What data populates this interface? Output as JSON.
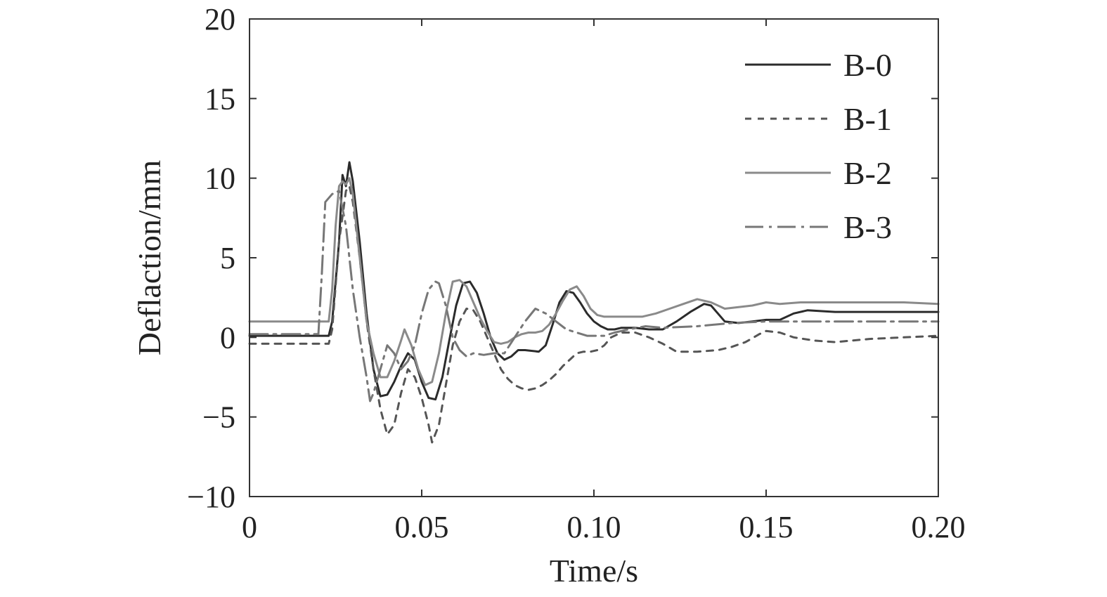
{
  "chart_data": {
    "type": "line",
    "title": "",
    "xlabel": "Time/s",
    "ylabel": "Deflaction/mm",
    "xlim": [
      0,
      0.2
    ],
    "ylim": [
      -10,
      20
    ],
    "xticks": [
      0,
      0.05,
      0.1,
      0.15,
      0.2
    ],
    "xtick_labels": [
      "0",
      "0.05",
      "0.10",
      "0.15",
      "0.20"
    ],
    "yticks": [
      -10,
      -5,
      0,
      5,
      10,
      15,
      20
    ],
    "ytick_labels": [
      "−10",
      "−5",
      "0",
      "5",
      "10",
      "15",
      "20"
    ],
    "grid": false,
    "legend_position": "top-right",
    "series": [
      {
        "name": "B-0",
        "color": "#2b2b2b",
        "dash": "",
        "x": [
          0,
          0.023,
          0.024,
          0.026,
          0.027,
          0.028,
          0.029,
          0.03,
          0.032,
          0.034,
          0.036,
          0.038,
          0.04,
          0.042,
          0.044,
          0.046,
          0.048,
          0.05,
          0.052,
          0.054,
          0.056,
          0.058,
          0.06,
          0.062,
          0.064,
          0.066,
          0.068,
          0.07,
          0.072,
          0.074,
          0.076,
          0.078,
          0.08,
          0.084,
          0.086,
          0.088,
          0.09,
          0.092,
          0.094,
          0.096,
          0.098,
          0.1,
          0.102,
          0.104,
          0.106,
          0.108,
          0.112,
          0.116,
          0.12,
          0.124,
          0.128,
          0.132,
          0.134,
          0.136,
          0.138,
          0.142,
          0.146,
          0.15,
          0.154,
          0.158,
          0.162,
          0.17,
          0.18,
          0.19,
          0.2
        ],
        "y": [
          0.1,
          0.1,
          1.0,
          6.0,
          10.2,
          9.5,
          11.0,
          9.8,
          6.0,
          1.5,
          -2.0,
          -3.7,
          -3.6,
          -2.8,
          -1.8,
          -1.0,
          -1.4,
          -2.8,
          -3.8,
          -3.9,
          -2.5,
          -0.2,
          2.0,
          3.4,
          3.5,
          2.8,
          1.5,
          0.0,
          -1.0,
          -1.4,
          -1.2,
          -0.8,
          -0.8,
          -0.9,
          -0.5,
          0.8,
          2.2,
          2.9,
          2.8,
          2.2,
          1.5,
          1.0,
          0.7,
          0.5,
          0.5,
          0.6,
          0.6,
          0.5,
          0.5,
          1.0,
          1.6,
          2.1,
          2.0,
          1.5,
          1.0,
          0.9,
          1.0,
          1.1,
          1.1,
          1.5,
          1.7,
          1.6,
          1.6,
          1.6,
          1.6
        ]
      },
      {
        "name": "B-1",
        "color": "#555555",
        "dash": "9,9",
        "x": [
          0,
          0.023,
          0.024,
          0.026,
          0.028,
          0.029,
          0.03,
          0.032,
          0.034,
          0.036,
          0.038,
          0.04,
          0.042,
          0.044,
          0.046,
          0.048,
          0.05,
          0.052,
          0.053,
          0.055,
          0.057,
          0.059,
          0.061,
          0.063,
          0.065,
          0.067,
          0.069,
          0.071,
          0.073,
          0.075,
          0.077,
          0.079,
          0.081,
          0.083,
          0.085,
          0.087,
          0.089,
          0.091,
          0.093,
          0.095,
          0.097,
          0.099,
          0.101,
          0.103,
          0.105,
          0.108,
          0.112,
          0.116,
          0.12,
          0.124,
          0.13,
          0.136,
          0.14,
          0.144,
          0.148,
          0.15,
          0.154,
          0.158,
          0.164,
          0.17,
          0.18,
          0.19,
          0.2
        ],
        "y": [
          -0.4,
          -0.4,
          0.5,
          6.0,
          9.2,
          9.5,
          8.5,
          5.0,
          1.0,
          -2.0,
          -4.5,
          -6.1,
          -5.5,
          -3.5,
          -2.0,
          -2.5,
          -3.8,
          -5.5,
          -6.6,
          -5.5,
          -3.0,
          -0.5,
          1.0,
          1.8,
          1.7,
          1.0,
          0.0,
          -1.0,
          -2.0,
          -2.6,
          -3.0,
          -3.2,
          -3.3,
          -3.2,
          -3.0,
          -2.7,
          -2.3,
          -1.8,
          -1.4,
          -1.0,
          -0.9,
          -0.9,
          -0.8,
          -0.5,
          0.0,
          0.3,
          0.3,
          0.0,
          -0.4,
          -0.9,
          -0.9,
          -0.8,
          -0.6,
          -0.3,
          0.2,
          0.4,
          0.3,
          0.0,
          -0.2,
          -0.3,
          -0.1,
          0.0,
          0.1
        ]
      },
      {
        "name": "B-2",
        "color": "#8a8a8a",
        "dash": "",
        "x": [
          0,
          0.023,
          0.024,
          0.025,
          0.026,
          0.027,
          0.028,
          0.029,
          0.03,
          0.032,
          0.034,
          0.036,
          0.038,
          0.04,
          0.042,
          0.044,
          0.045,
          0.047,
          0.049,
          0.051,
          0.053,
          0.055,
          0.057,
          0.059,
          0.061,
          0.063,
          0.065,
          0.067,
          0.069,
          0.071,
          0.073,
          0.075,
          0.077,
          0.079,
          0.081,
          0.083,
          0.085,
          0.087,
          0.089,
          0.091,
          0.093,
          0.095,
          0.097,
          0.099,
          0.101,
          0.103,
          0.106,
          0.11,
          0.114,
          0.118,
          0.122,
          0.126,
          0.13,
          0.134,
          0.138,
          0.142,
          0.146,
          0.15,
          0.154,
          0.16,
          0.17,
          0.18,
          0.19,
          0.2
        ],
        "y": [
          1.0,
          1.0,
          3.0,
          7.0,
          9.5,
          9.8,
          9.6,
          10.0,
          9.0,
          5.0,
          1.0,
          -1.0,
          -2.5,
          -2.5,
          -1.5,
          -0.2,
          0.5,
          -0.5,
          -2.0,
          -3.0,
          -2.8,
          -1.0,
          1.5,
          3.5,
          3.6,
          3.2,
          2.2,
          1.2,
          0.4,
          -0.3,
          -0.4,
          -0.3,
          0.0,
          0.2,
          0.3,
          0.3,
          0.4,
          0.8,
          1.5,
          2.3,
          3.0,
          3.2,
          2.6,
          1.8,
          1.4,
          1.3,
          1.3,
          1.3,
          1.3,
          1.5,
          1.8,
          2.1,
          2.4,
          2.2,
          1.8,
          1.9,
          2.0,
          2.2,
          2.1,
          2.2,
          2.2,
          2.2,
          2.2,
          2.1
        ]
      },
      {
        "name": "B-3",
        "color": "#777777",
        "dash": "26,8,4,8",
        "x": [
          0,
          0.02,
          0.021,
          0.022,
          0.024,
          0.026,
          0.028,
          0.03,
          0.032,
          0.034,
          0.035,
          0.036,
          0.038,
          0.04,
          0.042,
          0.044,
          0.046,
          0.048,
          0.05,
          0.052,
          0.054,
          0.055,
          0.057,
          0.059,
          0.061,
          0.063,
          0.065,
          0.068,
          0.071,
          0.074,
          0.077,
          0.08,
          0.083,
          0.086,
          0.089,
          0.092,
          0.095,
          0.098,
          0.1,
          0.103,
          0.106,
          0.11,
          0.115,
          0.12,
          0.13,
          0.14,
          0.15,
          0.16,
          0.17,
          0.18,
          0.19,
          0.2
        ],
        "y": [
          0.2,
          0.2,
          4.0,
          8.5,
          9.0,
          9.2,
          7.0,
          3.0,
          0.0,
          -2.5,
          -4.0,
          -3.5,
          -2.0,
          -0.5,
          -1.0,
          -2.0,
          -1.5,
          -0.5,
          1.5,
          3.0,
          3.5,
          3.4,
          2.0,
          0.0,
          -0.8,
          -1.2,
          -1.0,
          -1.1,
          -1.0,
          -1.0,
          0.0,
          1.0,
          1.8,
          1.5,
          1.0,
          0.5,
          0.3,
          0.1,
          0.1,
          0.1,
          0.3,
          0.5,
          0.7,
          0.6,
          0.7,
          0.9,
          1.0,
          1.0,
          1.0,
          1.0,
          1.0,
          1.0
        ]
      }
    ]
  }
}
